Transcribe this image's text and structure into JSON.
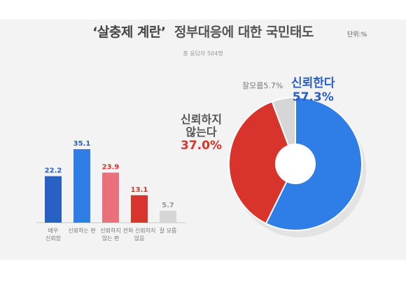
{
  "header": {
    "title_quote": "‘살충제 계란’",
    "title_rest": "정부대응에 대한 국민태도",
    "unit": "단위:%",
    "sample": "총 응답자 504명"
  },
  "colors": {
    "blue_dark": "#2a5fc4",
    "blue": "#2f7de6",
    "red_light": "#e8717c",
    "red": "#d9342c",
    "gray": "#d6d6d6",
    "label_blue": "#2a5fc4",
    "label_red": "#d9342c"
  },
  "chart_data": [
    {
      "type": "bar",
      "categories": [
        "매우\n신뢰함",
        "신뢰하는 편",
        "신뢰하지\n않는 편",
        "전혀 신뢰하지\n않음",
        "잘 모름"
      ],
      "values": [
        22.2,
        35.1,
        23.9,
        13.1,
        5.7
      ],
      "value_labels": [
        "22.2",
        "35.1",
        "23.9",
        "13.1",
        "5.7"
      ],
      "title": "",
      "xlabel": "",
      "ylabel": ""
    },
    {
      "type": "pie",
      "categories": [
        "신뢰한다",
        "신뢰하지\n않는다",
        "잘 모름"
      ],
      "values": [
        57.3,
        37.0,
        5.7
      ],
      "labels": [
        "57.3%",
        "37.0%",
        "5.7%"
      ],
      "donut": true
    }
  ],
  "callouts": {
    "trust_name": "신뢰한다",
    "trust_value": "57.3%",
    "distrust_name_1": "신뢰하지",
    "distrust_name_2": "않는다",
    "distrust_value": "37.0%",
    "unknown_name": "잘모름",
    "unknown_value": "5.7%"
  }
}
